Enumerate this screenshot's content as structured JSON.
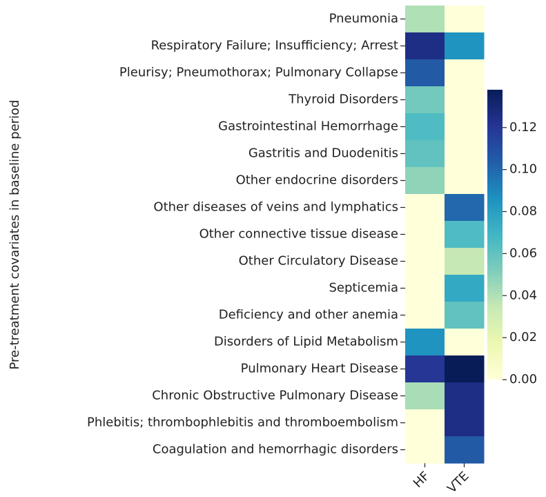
{
  "chart_data": {
    "type": "heatmap",
    "ylabel": "Pre-treatment covariates in baseline period",
    "categories": [
      "Pneumonia",
      "Respiratory Failure; Insufficiency; Arrest",
      "Pleurisy; Pneumothorax; Pulmonary Collapse",
      "Thyroid Disorders",
      "Gastrointestinal Hemorrhage",
      "Gastritis and Duodenitis",
      "Other endocrine disorders",
      "Other diseases of veins and lymphatics",
      "Other connective tissue disease",
      "Other Circulatory Disease",
      "Septicemia",
      "Deficiency and other anemia",
      "Disorders of Lipid Metabolism",
      "Pulmonary Heart Disease",
      "Chronic Obstructive Pulmonary Disease",
      "Phlebitis; thrombophlebitis and thromboembolism",
      "Coagulation and hemorrhagic disorders"
    ],
    "series": [
      {
        "name": "HF",
        "values": [
          0.04,
          0.125,
          0.105,
          0.055,
          0.065,
          0.06,
          0.048,
          0,
          0,
          0,
          0,
          0,
          0.085,
          0.12,
          0.042,
          0,
          0
        ]
      },
      {
        "name": "VTE",
        "values": [
          0,
          0.085,
          0,
          0,
          0,
          0,
          0,
          0.1,
          0.065,
          0.035,
          0.075,
          0.06,
          0,
          0.138,
          0.125,
          0.125,
          0.105
        ]
      }
    ],
    "colormap": [
      "#ffffd9",
      "#edf8b1",
      "#c7e9b4",
      "#7fcdbb",
      "#41b6c4",
      "#1d91c0",
      "#225ea8",
      "#253494",
      "#081d58"
    ],
    "clim": [
      0,
      0.138
    ],
    "cticks": [
      {
        "value": 0,
        "label": "0.00"
      },
      {
        "value": 0.02,
        "label": "0.02"
      },
      {
        "value": 0.04,
        "label": "0.04"
      },
      {
        "value": 0.06,
        "label": "0.06"
      },
      {
        "value": 0.08,
        "label": "0.08"
      },
      {
        "value": 0.1,
        "label": "0.10"
      },
      {
        "value": 0.12,
        "label": "0.12"
      }
    ]
  }
}
